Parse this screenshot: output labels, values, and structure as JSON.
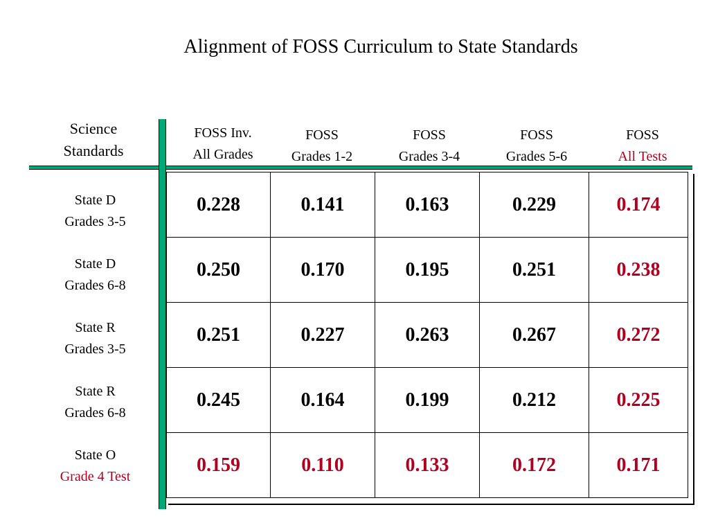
{
  "title": "Alignment of FOSS Curriculum to State Standards",
  "corner_header": [
    "Science",
    "Standards"
  ],
  "columns": [
    {
      "line1": "FOSS Inv.",
      "line2": "All Grades",
      "line2_highlight": false
    },
    {
      "line1": "FOSS",
      "line2": "Grades 1-2",
      "line2_highlight": false
    },
    {
      "line1": "FOSS",
      "line2": "Grades 3-4",
      "line2_highlight": false
    },
    {
      "line1": "FOSS",
      "line2": "Grades 5-6",
      "line2_highlight": false
    },
    {
      "line1": "FOSS",
      "line2": "All Tests",
      "line2_highlight": true
    }
  ],
  "rows": [
    {
      "line1": "State D",
      "line2": "Grades 3-5",
      "line2_highlight": false,
      "values": [
        "0.228",
        "0.141",
        "0.163",
        "0.229",
        "0.174"
      ]
    },
    {
      "line1": "State D",
      "line2": "Grades 6-8",
      "line2_highlight": false,
      "values": [
        "0.250",
        "0.170",
        "0.195",
        "0.251",
        "0.238"
      ]
    },
    {
      "line1": "State R",
      "line2": "Grades 3-5",
      "line2_highlight": false,
      "values": [
        "0.251",
        "0.227",
        "0.263",
        "0.267",
        "0.272"
      ]
    },
    {
      "line1": "State R",
      "line2": "Grades 6-8",
      "line2_highlight": false,
      "values": [
        "0.245",
        "0.164",
        "0.199",
        "0.212",
        "0.225"
      ]
    },
    {
      "line1": "State O",
      "line2": "Grade 4 Test",
      "line2_highlight": true,
      "values": [
        "0.159",
        "0.110",
        "0.133",
        "0.172",
        "0.171"
      ]
    }
  ],
  "colors": {
    "highlight": "#b00020",
    "rule": "#00a878",
    "text": "#000000"
  }
}
